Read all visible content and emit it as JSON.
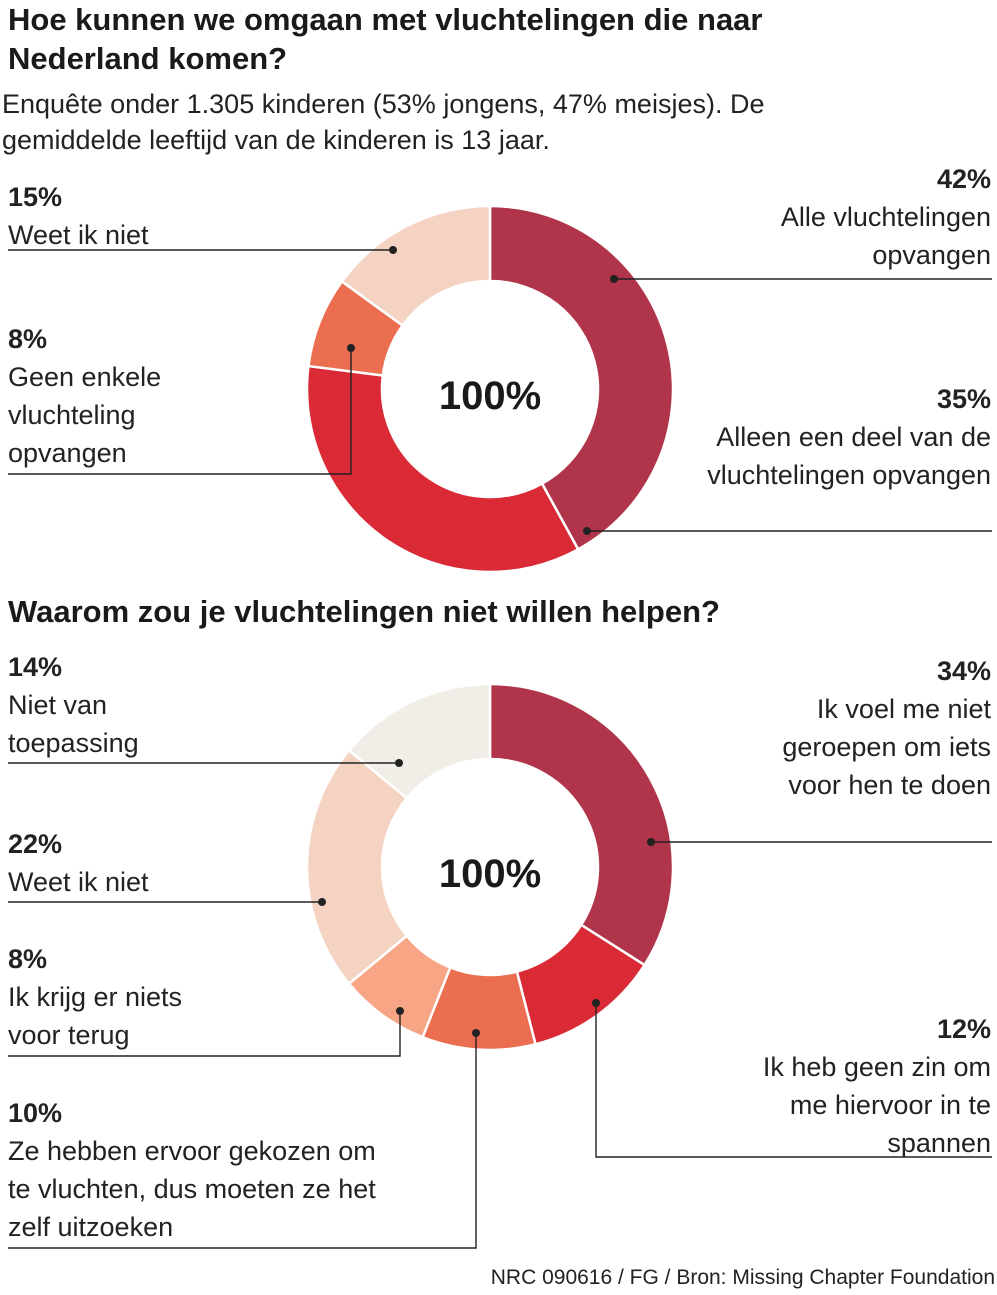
{
  "title1": "Hoe kunnen we omgaan met vluchtelingen die naar Nederland komen?",
  "subtitle": "Enquête onder 1.305 kinderen (53% jongens, 47% meisjes). De gemiddelde leeftijd van de kinderen is 13 jaar.",
  "title2": "Waarom zou je vluchtelingen niet willen helpen?",
  "footer": "NRC 090616 / FG / Bron: Missing Chapter Foundation",
  "chart_data": [
    {
      "type": "pie",
      "title": "Hoe kunnen we omgaan met vluchtelingen die naar Nederland komen?",
      "center_label": "100%",
      "slices": [
        {
          "label": "Alle vluchtelingen opvangen",
          "value": 42,
          "pct_label": "42%",
          "color": "#b0344a"
        },
        {
          "label": "Alleen een deel van de vluchtelingen opvangen",
          "value": 35,
          "pct_label": "35%",
          "color": "#d92a35"
        },
        {
          "label": "Geen enkele vluchteling opvangen",
          "value": 8,
          "pct_label": "8%",
          "color": "#ec6e50"
        },
        {
          "label": "Weet ik niet",
          "value": 15,
          "pct_label": "15%",
          "color": "#f5d3c2"
        }
      ]
    },
    {
      "type": "pie",
      "title": "Waarom zou je vluchtelingen niet willen helpen?",
      "center_label": "100%",
      "slices": [
        {
          "label": "Ik voel me niet geroepen om iets voor hen te doen",
          "value": 34,
          "pct_label": "34%",
          "color": "#b0344a"
        },
        {
          "label": "Ik heb geen zin om me hiervoor in te spannen",
          "value": 12,
          "pct_label": "12%",
          "color": "#d92a35"
        },
        {
          "label": "Ze hebben ervoor gekozen om te vluchten, dus moeten ze het zelf uitzoeken",
          "value": 10,
          "pct_label": "10%",
          "color": "#ec6e50"
        },
        {
          "label": "Ik krijg er niets voor terug",
          "value": 8,
          "pct_label": "8%",
          "color": "#f7a585"
        },
        {
          "label": "Weet ik niet",
          "value": 22,
          "pct_label": "22%",
          "color": "#f5d3c2"
        },
        {
          "label": "Niet van toepassing",
          "value": 14,
          "pct_label": "14%",
          "color": "#f1eee8"
        }
      ]
    }
  ]
}
